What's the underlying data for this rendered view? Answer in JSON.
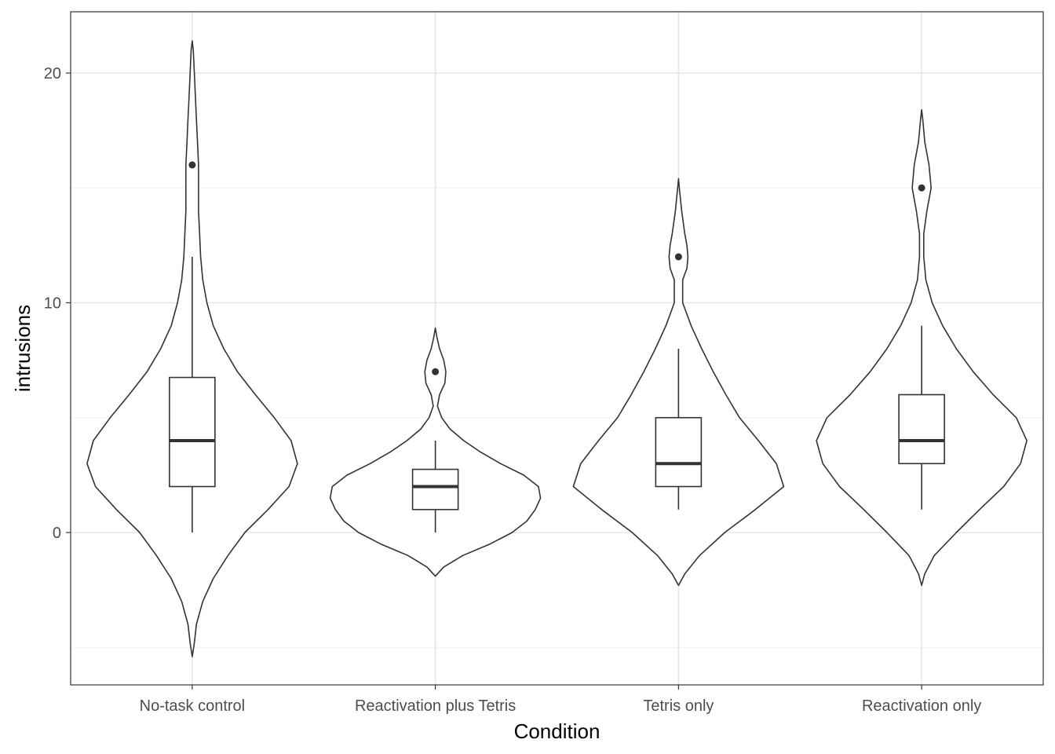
{
  "chart_data": {
    "type": "violin",
    "xlabel": "Condition",
    "ylabel": "intrusions",
    "ylim": [
      -5.4,
      22.4
    ],
    "y_ticks": [
      0,
      10,
      20
    ],
    "grid": true,
    "categories": [
      "No-task control",
      "Reactivation plus Tetris",
      "Tetris only",
      "Reactivation only"
    ],
    "boxes": [
      {
        "q1": 2,
        "median": 4,
        "q3": 6.75,
        "whisker_low": 0,
        "whisker_high": 12,
        "outliers": [
          16
        ]
      },
      {
        "q1": 1,
        "median": 2,
        "q3": 2.75,
        "whisker_low": 0,
        "whisker_high": 4,
        "outliers": [
          7
        ]
      },
      {
        "q1": 2,
        "median": 3,
        "q3": 5,
        "whisker_low": 1,
        "whisker_high": 8,
        "outliers": [
          12
        ]
      },
      {
        "q1": 3,
        "median": 4,
        "q3": 6,
        "whisker_low": 1,
        "whisker_high": 9,
        "outliers": [
          15
        ]
      }
    ],
    "violins": [
      {
        "ymin": -5.4,
        "ymax": 21.4,
        "density": [
          [
            -5.4,
            0
          ],
          [
            -4.8,
            0.02
          ],
          [
            -4,
            0.04
          ],
          [
            -3,
            0.1
          ],
          [
            -2,
            0.2
          ],
          [
            -1,
            0.34
          ],
          [
            0,
            0.5
          ],
          [
            1,
            0.72
          ],
          [
            2,
            0.92
          ],
          [
            3,
            1.0
          ],
          [
            4,
            0.94
          ],
          [
            5,
            0.78
          ],
          [
            6,
            0.6
          ],
          [
            7,
            0.43
          ],
          [
            8,
            0.3
          ],
          [
            9,
            0.2
          ],
          [
            10,
            0.14
          ],
          [
            11,
            0.1
          ],
          [
            12,
            0.08
          ],
          [
            13,
            0.07
          ],
          [
            14,
            0.06
          ],
          [
            15,
            0.06
          ],
          [
            16,
            0.06
          ],
          [
            17,
            0.05
          ],
          [
            18,
            0.04
          ],
          [
            19,
            0.03
          ],
          [
            20,
            0.02
          ],
          [
            21,
            0.01
          ],
          [
            21.4,
            0
          ]
        ]
      },
      {
        "ymin": -1.9,
        "ymax": 8.9,
        "density": [
          [
            -1.9,
            0
          ],
          [
            -1.5,
            0.08
          ],
          [
            -1,
            0.26
          ],
          [
            -0.5,
            0.52
          ],
          [
            0,
            0.73
          ],
          [
            0.5,
            0.87
          ],
          [
            1,
            0.95
          ],
          [
            1.5,
            1.0
          ],
          [
            2,
            0.98
          ],
          [
            2.5,
            0.84
          ],
          [
            3,
            0.62
          ],
          [
            3.5,
            0.43
          ],
          [
            4,
            0.27
          ],
          [
            4.5,
            0.14
          ],
          [
            5,
            0.06
          ],
          [
            5.5,
            0.02
          ],
          [
            6,
            0.04
          ],
          [
            6.5,
            0.09
          ],
          [
            7,
            0.1
          ],
          [
            7.5,
            0.08
          ],
          [
            8,
            0.04
          ],
          [
            8.5,
            0.015
          ],
          [
            8.9,
            0
          ]
        ]
      },
      {
        "ymin": -2.3,
        "ymax": 15.4,
        "density": [
          [
            -2.3,
            0
          ],
          [
            -1.8,
            0.06
          ],
          [
            -1,
            0.2
          ],
          [
            0,
            0.44
          ],
          [
            1,
            0.73
          ],
          [
            2,
            1.0
          ],
          [
            3,
            0.93
          ],
          [
            4,
            0.76
          ],
          [
            5,
            0.58
          ],
          [
            6,
            0.45
          ],
          [
            7,
            0.33
          ],
          [
            8,
            0.22
          ],
          [
            9,
            0.12
          ],
          [
            10,
            0.04
          ],
          [
            11,
            0.04
          ],
          [
            11.5,
            0.08
          ],
          [
            12,
            0.09
          ],
          [
            12.5,
            0.08
          ],
          [
            13,
            0.06
          ],
          [
            14,
            0.03
          ],
          [
            15,
            0.008
          ],
          [
            15.4,
            0
          ]
        ]
      },
      {
        "ymin": -2.3,
        "ymax": 18.4,
        "density": [
          [
            -2.3,
            0
          ],
          [
            -1.8,
            0.03
          ],
          [
            -1,
            0.12
          ],
          [
            0,
            0.33
          ],
          [
            1,
            0.55
          ],
          [
            2,
            0.78
          ],
          [
            3,
            0.94
          ],
          [
            4,
            1.0
          ],
          [
            5,
            0.9
          ],
          [
            6,
            0.68
          ],
          [
            7,
            0.49
          ],
          [
            8,
            0.33
          ],
          [
            9,
            0.2
          ],
          [
            10,
            0.1
          ],
          [
            11,
            0.04
          ],
          [
            12,
            0.02
          ],
          [
            13,
            0.02
          ],
          [
            14,
            0.05
          ],
          [
            15,
            0.09
          ],
          [
            16,
            0.07
          ],
          [
            17,
            0.03
          ],
          [
            18,
            0.01
          ],
          [
            18.4,
            0
          ]
        ]
      }
    ]
  }
}
